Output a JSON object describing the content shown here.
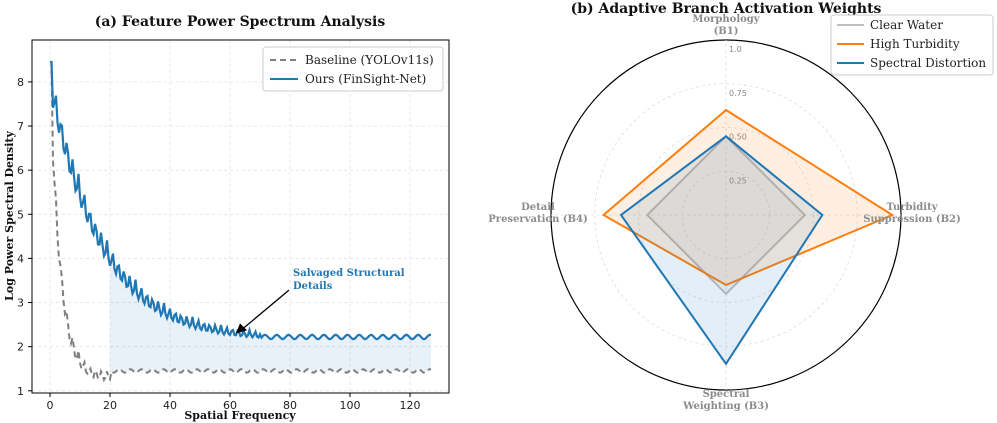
{
  "chart_data": [
    {
      "type": "line",
      "title": "(a) Feature Power Spectrum Analysis",
      "xlabel": "Spatial Frequency",
      "ylabel": "Log Power Spectral Density",
      "xlim": [
        -6,
        133
      ],
      "ylim": [
        0.95,
        8.95
      ],
      "xticks": [
        0,
        20,
        40,
        60,
        80,
        100,
        120
      ],
      "yticks": [
        1,
        2,
        3,
        4,
        5,
        6,
        7,
        8
      ],
      "grid": true,
      "legend_position": "top-right",
      "series": [
        {
          "name": "Baseline (YOLOv11s)",
          "color": "#7f7f7f",
          "dashed": true,
          "baseline": 1.45,
          "start": 8.45,
          "decay": 0.28,
          "amplitude": 0.35
        },
        {
          "name": "Ours (FinSight-Net)",
          "color": "#1f77b4",
          "dashed": false,
          "baseline": 2.22,
          "start": 8.45,
          "decay": 0.055,
          "amplitude": 0.72
        }
      ],
      "fill_region": {
        "x_start": 20,
        "x_end": 127,
        "color": "#1f77b4"
      },
      "annotation": {
        "text_lines": [
          "Salvaged Structural",
          "Details"
        ],
        "text_x": 81,
        "text_y": 3.6,
        "arrow_to_x": 62,
        "arrow_to_y": 2.3,
        "color": "#1f77b4"
      }
    },
    {
      "type": "radar",
      "title": "(b) Adaptive Branch Activation Weights",
      "axes": [
        [
          "Morphology",
          "(B1)"
        ],
        [
          "Turbidity",
          "Suppression (B2)"
        ],
        [
          "Spectral",
          "Weighting (B3)"
        ],
        [
          "Detail",
          "Preservation (B4)"
        ]
      ],
      "rmax": 1.0,
      "rticks": [
        "0.25",
        "0.50",
        "0.75",
        "1.0"
      ],
      "rtick_values": [
        0.25,
        0.5,
        0.75,
        1.0
      ],
      "legend_position": "top-right",
      "series": [
        {
          "name": "Clear Water",
          "color": "#bfbfbf",
          "values": [
            0.45,
            0.45,
            0.45,
            0.45
          ]
        },
        {
          "name": "High Turbidity",
          "color": "#ff7f0e",
          "values": [
            0.6,
            0.95,
            0.4,
            0.7
          ]
        },
        {
          "name": "Spectral Distortion",
          "color": "#1f77b4",
          "values": [
            0.45,
            0.55,
            0.85,
            0.6
          ]
        }
      ]
    }
  ]
}
